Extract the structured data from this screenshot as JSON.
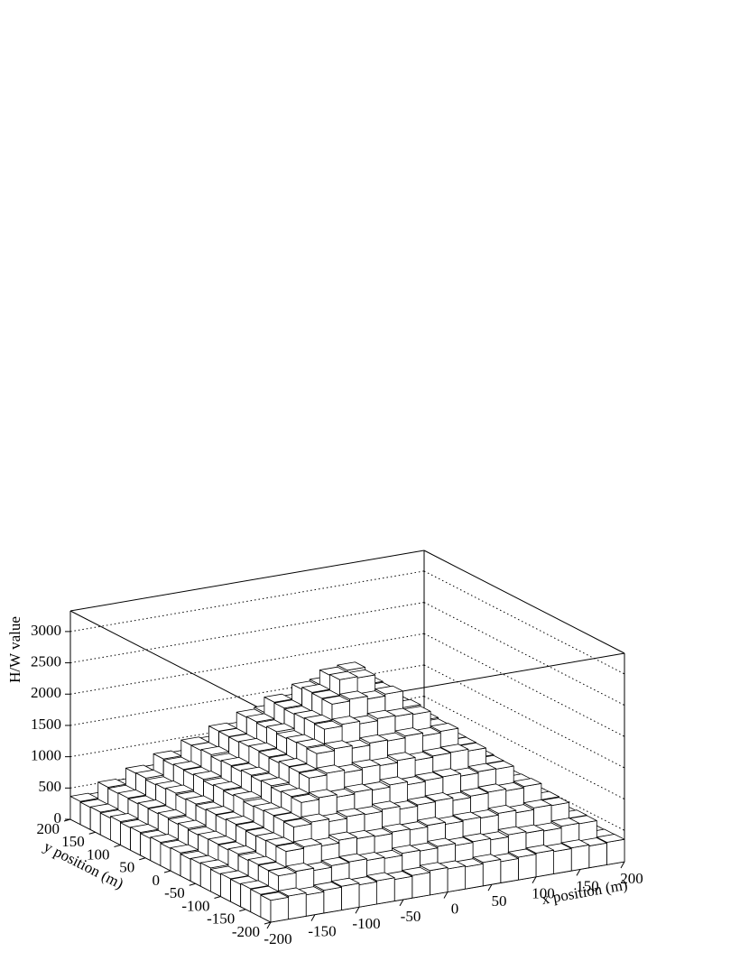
{
  "chart_data": {
    "type": "lego",
    "x_label": "x position (m)",
    "y_label": "y position (m)",
    "z_label": "H/W value",
    "xlim": [
      -200,
      200
    ],
    "ylim": [
      -200,
      200
    ],
    "zlim": [
      0,
      3330
    ],
    "xticks": [
      -200,
      -150,
      -100,
      -50,
      0,
      50,
      100,
      150,
      200
    ],
    "yticks": [
      -200,
      -150,
      -100,
      -50,
      0,
      50,
      100,
      150,
      200
    ],
    "zticks": [
      0,
      500,
      1000,
      1500,
      2000,
      2500,
      3000
    ],
    "grid": true,
    "color": "#ffffff",
    "values": [
      [
        350,
        370,
        340,
        365,
        380,
        355,
        372,
        345,
        360,
        390,
        368,
        352,
        375,
        340,
        362,
        378,
        355,
        366,
        348,
        358
      ],
      [
        362,
        610,
        635,
        600,
        628,
        640,
        615,
        598,
        632,
        620,
        645,
        612,
        625,
        605,
        638,
        618,
        602,
        630,
        622,
        355
      ],
      [
        370,
        615,
        870,
        895,
        860,
        905,
        880,
        865,
        890,
        875,
        900,
        868,
        885,
        872,
        898,
        860,
        888,
        878,
        628,
        348
      ],
      [
        358,
        625,
        882,
        1130,
        1160,
        1120,
        1150,
        1135,
        1170,
        1125,
        1145,
        1160,
        1118,
        1140,
        1155,
        1128,
        1148,
        890,
        612,
        372
      ],
      [
        365,
        608,
        874,
        1142,
        1390,
        1420,
        1380,
        1410,
        1395,
        1430,
        1385,
        1405,
        1415,
        1378,
        1400,
        1392,
        1136,
        886,
        618,
        350
      ],
      [
        352,
        630,
        868,
        1150,
        1405,
        1650,
        1680,
        1640,
        1670,
        1655,
        1690,
        1645,
        1665,
        1675,
        1648,
        1398,
        1128,
        895,
        605,
        366
      ],
      [
        374,
        612,
        880,
        1138,
        1388,
        1662,
        1910,
        1940,
        1900,
        1935,
        1920,
        1950,
        1905,
        1928,
        1655,
        1410,
        1145,
        872,
        628,
        358
      ],
      [
        360,
        622,
        892,
        1125,
        1412,
        1670,
        1930,
        2170,
        2200,
        2160,
        2195,
        2180,
        2165,
        1915,
        1660,
        1395,
        1152,
        878,
        615,
        370
      ],
      [
        348,
        618,
        876,
        1155,
        1398,
        1645,
        1920,
        2185,
        2440,
        2470,
        2425,
        2455,
        2190,
        1935,
        1672,
        1402,
        1132,
        890,
        632,
        362
      ],
      [
        368,
        605,
        885,
        1132,
        1415,
        1658,
        1902,
        2175,
        2450,
        2700,
        2680,
        2430,
        2172,
        1926,
        1650,
        1390,
        1148,
        868,
        620,
        354
      ],
      [
        356,
        628,
        870,
        1148,
        1392,
        1672,
        1932,
        2162,
        2462,
        2690,
        2720,
        2445,
        2188,
        1912,
        1668,
        1408,
        1135,
        882,
        610,
        376
      ],
      [
        372,
        610,
        888,
        1128,
        1405,
        1660,
        1908,
        2178,
        2430,
        2458,
        2475,
        2438,
        2168,
        1940,
        1652,
        1385,
        1158,
        870,
        625,
        345
      ],
      [
        350,
        632,
        874,
        1152,
        1388,
        1648,
        1925,
        2190,
        2158,
        2205,
        2172,
        2185,
        2160,
        1918,
        1675,
        1402,
        1130,
        894,
        608,
        368
      ],
      [
        366,
        615,
        896,
        1135,
        1415,
        1655,
        1915,
        1945,
        1898,
        1930,
        1925,
        1908,
        1942,
        1912,
        1668,
        1392,
        1150,
        866,
        630,
        352
      ],
      [
        358,
        625,
        878,
        1145,
        1398,
        1660,
        1642,
        1685,
        1652,
        1670,
        1648,
        1680,
        1658,
        1645,
        1672,
        1405,
        1138,
        885,
        612,
        370
      ],
      [
        375,
        608,
        865,
        1130,
        1402,
        1385,
        1418,
        1390,
        1425,
        1398,
        1380,
        1412,
        1395,
        1428,
        1388,
        1408,
        1142,
        880,
        628,
        356
      ],
      [
        348,
        620,
        890,
        1148,
        1125,
        1162,
        1138,
        1155,
        1120,
        1168,
        1142,
        1130,
        1158,
        1135,
        1150,
        1128,
        1145,
        872,
        615,
        365
      ],
      [
        362,
        612,
        885,
        862,
        898,
        870,
        892,
        878,
        866,
        905,
        880,
        872,
        895,
        862,
        888,
        875,
        890,
        868,
        625,
        358
      ],
      [
        355,
        628,
        605,
        640,
        615,
        632,
        598,
        622,
        645,
        610,
        636,
        618,
        602,
        630,
        625,
        642,
        608,
        620,
        612,
        372
      ],
      [
        368,
        352,
        375,
        345,
        362,
        380,
        358,
        370,
        342,
        366,
        378,
        355,
        372,
        348,
        360,
        385,
        352,
        368,
        362,
        345
      ]
    ]
  }
}
